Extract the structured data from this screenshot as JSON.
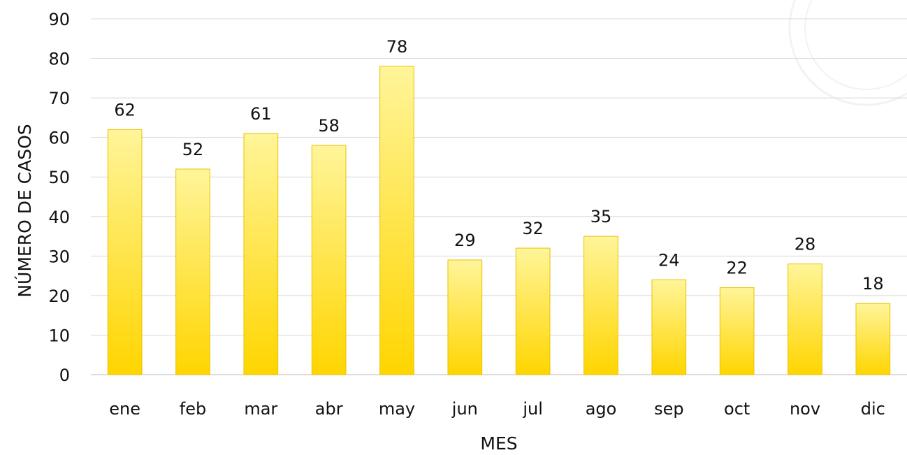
{
  "chart_data": {
    "type": "bar",
    "categories": [
      "ene",
      "feb",
      "mar",
      "abr",
      "may",
      "jun",
      "jul",
      "ago",
      "sep",
      "oct",
      "nov",
      "dic"
    ],
    "values": [
      62,
      52,
      61,
      58,
      78,
      29,
      32,
      35,
      24,
      22,
      28,
      18
    ],
    "title": "",
    "xlabel": "MES",
    "ylabel": "NÚMERO DE CASOS",
    "ylim": [
      0,
      90
    ],
    "yticks": [
      0,
      10,
      20,
      30,
      40,
      50,
      60,
      70,
      80,
      90
    ],
    "grid": true,
    "legend": "none",
    "data_labels": true,
    "colors": {
      "bar_top": "#fff59a",
      "bar_bottom": "#ffd500",
      "bar_edge": "#e8c200",
      "grid": "#d9d9d9",
      "text": "#111111"
    }
  }
}
